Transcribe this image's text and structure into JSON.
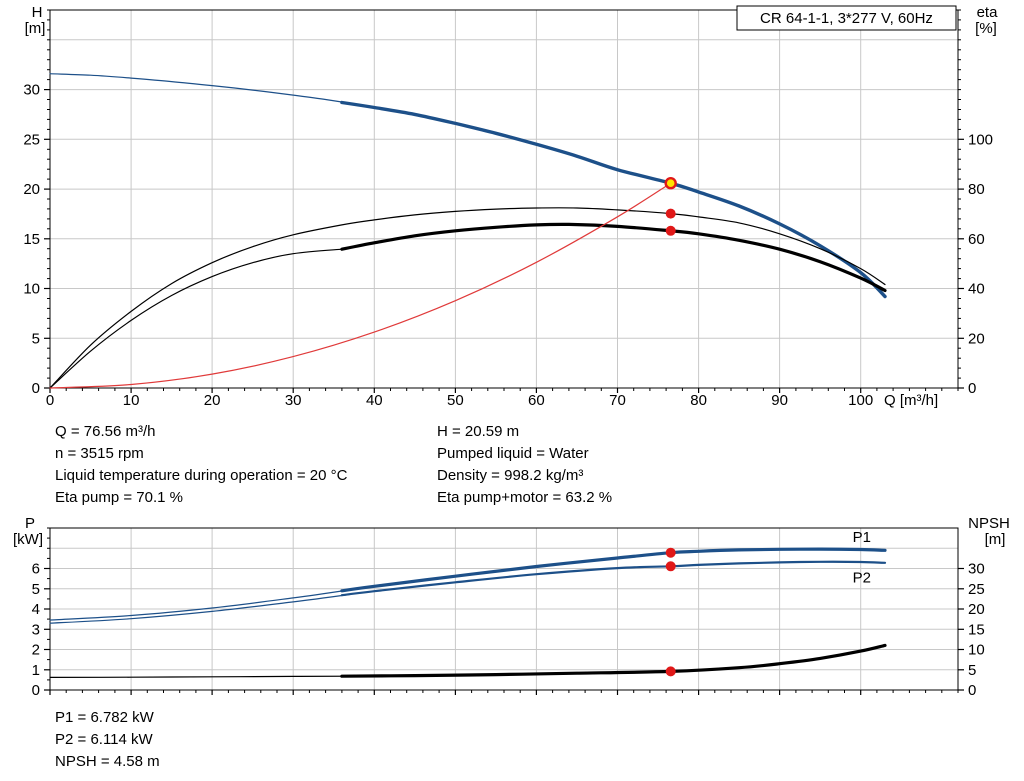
{
  "colors": {
    "curve_blue": "#1d5089",
    "curve_black": "#000000",
    "curve_red": "#e03a3a",
    "marker_red": "#e01818",
    "marker_yellow_fill": "#ffe300",
    "grid": "#c8c8c8",
    "frame": "#000000",
    "label_blue": "#1d5089"
  },
  "operating_data": {
    "left": [
      "Q = 76.56 m³/h",
      "n = 3515 rpm",
      "Liquid temperature during operation = 20 °C",
      "Eta pump = 70.1 %"
    ],
    "right": [
      "H = 20.59 m",
      "Pumped liquid = Water",
      "Density = 998.2 kg/m³",
      "Eta pump+motor = 63.2 %"
    ]
  },
  "power_data": [
    "P1 = 6.782 kW",
    "P2 = 6.114 kW",
    "NPSH = 4.58 m"
  ],
  "chart_data": [
    {
      "type": "line",
      "name": "hq-eta-chart",
      "title": "CR 64-1-1, 3*277 V, 60Hz",
      "x_axis": {
        "label": "Q [m³/h]",
        "min": 0,
        "max": 112,
        "ticks": [
          0,
          10,
          20,
          30,
          40,
          50,
          60,
          70,
          80,
          90,
          100
        ],
        "grid": [
          10,
          20,
          30,
          40,
          50,
          60,
          70,
          80,
          90,
          100
        ],
        "minor_step": 2
      },
      "y_left": {
        "label": "H",
        "unit": "[m]",
        "min": 0,
        "max": 38,
        "ticks": [
          0,
          5,
          10,
          15,
          20,
          25,
          30
        ],
        "grid": [
          5,
          10,
          15,
          20,
          25,
          30,
          35
        ],
        "minor_step": 1
      },
      "y_right": {
        "label": "eta",
        "unit": "[%]",
        "min": 0,
        "max": 152,
        "ticks": [
          0,
          20,
          40,
          60,
          80,
          100
        ],
        "minor_step": 4
      },
      "legend_position": "none",
      "series": [
        {
          "name": "hq-curve-low-flow",
          "color": "curve_blue",
          "width": 1.2,
          "points": [
            [
              0,
              31.6
            ],
            [
              5,
              31.45
            ],
            [
              10,
              31.15
            ],
            [
              15,
              30.8
            ],
            [
              20,
              30.4
            ],
            [
              25,
              29.95
            ],
            [
              30,
              29.45
            ],
            [
              34,
              29.0
            ],
            [
              38,
              28.5
            ]
          ]
        },
        {
          "name": "hq-curve",
          "color": "curve_blue",
          "width": 3.4,
          "points": [
            [
              36,
              28.7
            ],
            [
              40,
              28.2
            ],
            [
              45,
              27.5
            ],
            [
              50,
              26.6
            ],
            [
              55,
              25.6
            ],
            [
              60,
              24.5
            ],
            [
              65,
              23.3
            ],
            [
              70,
              21.95
            ],
            [
              76.56,
              20.59
            ],
            [
              80,
              19.7
            ],
            [
              85,
              18.3
            ],
            [
              90,
              16.5
            ],
            [
              95,
              14.3
            ],
            [
              100,
              11.6
            ],
            [
              103,
              9.2
            ]
          ]
        },
        {
          "name": "eta-pump-curve",
          "color": "curve_black",
          "width": 1.2,
          "points": [
            [
              0,
              0
            ],
            [
              5,
              4.3
            ],
            [
              10,
              7.7
            ],
            [
              15,
              10.5
            ],
            [
              20,
              12.6
            ],
            [
              25,
              14.2
            ],
            [
              30,
              15.4
            ],
            [
              36,
              16.4
            ],
            [
              40,
              16.9
            ],
            [
              45,
              17.4
            ],
            [
              50,
              17.75
            ],
            [
              55,
              17.98
            ],
            [
              60,
              18.1
            ],
            [
              65,
              18.1
            ],
            [
              70,
              17.9
            ],
            [
              76.56,
              17.53
            ],
            [
              80,
              17.2
            ],
            [
              85,
              16.6
            ],
            [
              90,
              15.5
            ],
            [
              95,
              14.0
            ],
            [
              100,
              12.0
            ],
            [
              103,
              10.4
            ]
          ]
        },
        {
          "name": "eta-pump-motor-curve-low-flow",
          "color": "curve_black",
          "width": 1.2,
          "points": [
            [
              0,
              0
            ],
            [
              5,
              3.7
            ],
            [
              10,
              6.8
            ],
            [
              15,
              9.3
            ],
            [
              20,
              11.2
            ],
            [
              25,
              12.6
            ],
            [
              30,
              13.5
            ],
            [
              36,
              13.95
            ]
          ]
        },
        {
          "name": "eta-pump-motor-curve",
          "color": "curve_black",
          "width": 3.2,
          "points": [
            [
              36,
              13.95
            ],
            [
              40,
              14.6
            ],
            [
              45,
              15.3
            ],
            [
              50,
              15.8
            ],
            [
              55,
              16.15
            ],
            [
              60,
              16.4
            ],
            [
              64,
              16.45
            ],
            [
              70,
              16.25
            ],
            [
              76.56,
              15.8
            ],
            [
              80,
              15.5
            ],
            [
              85,
              14.85
            ],
            [
              90,
              13.95
            ],
            [
              95,
              12.7
            ],
            [
              100,
              11.05
            ],
            [
              103,
              9.8
            ]
          ]
        },
        {
          "name": "system-curve",
          "color": "curve_red",
          "width": 1.2,
          "points": [
            [
              0,
              0
            ],
            [
              10,
              0.35
            ],
            [
              20,
              1.4
            ],
            [
              30,
              3.16
            ],
            [
              40,
              5.62
            ],
            [
              50,
              8.78
            ],
            [
              60,
              12.64
            ],
            [
              70,
              17.21
            ],
            [
              76.56,
              20.59
            ]
          ]
        }
      ],
      "markers": [
        {
          "name": "eta-pump-point",
          "x": 76.56,
          "y": 17.53,
          "r": 5,
          "fill": "marker_red"
        },
        {
          "name": "eta-pump-motor-point",
          "x": 76.56,
          "y": 15.8,
          "r": 5,
          "fill": "marker_red"
        },
        {
          "name": "duty-point",
          "x": 76.56,
          "y": 20.59,
          "r": 5,
          "fill": "marker_yellow_fill",
          "stroke": "marker_red",
          "stroke_width": 2.4
        }
      ],
      "labels": []
    },
    {
      "type": "line",
      "name": "power-npsh-chart",
      "title": "",
      "x_axis": {
        "label": "",
        "min": 0,
        "max": 112,
        "ticks": [
          0,
          10,
          20,
          30,
          40,
          50,
          60,
          70,
          80,
          90,
          100
        ],
        "grid": [
          10,
          20,
          30,
          40,
          50,
          60,
          70,
          80,
          90,
          100
        ],
        "minor_step": 2
      },
      "y_left": {
        "label": "P",
        "unit": "[kW]",
        "min": 0,
        "max": 8,
        "ticks": [
          0,
          1,
          2,
          3,
          4,
          5,
          6
        ],
        "grid": [
          1,
          2,
          3,
          4,
          5,
          6,
          7
        ],
        "minor_step": 0.5
      },
      "y_right": {
        "label": "NPSH",
        "unit": "[m]",
        "min": 0,
        "max": 40,
        "ticks": [
          0,
          5,
          10,
          15,
          20,
          25,
          30
        ]
      },
      "legend_position": "none",
      "series": [
        {
          "name": "p1-curve-low-flow",
          "color": "curve_blue",
          "width": 1.2,
          "points": [
            [
              0,
              3.45
            ],
            [
              10,
              3.68
            ],
            [
              20,
              4.05
            ],
            [
              30,
              4.55
            ],
            [
              37,
              4.95
            ]
          ]
        },
        {
          "name": "p1-curve",
          "color": "curve_blue",
          "width": 3.2,
          "points": [
            [
              36,
              4.9
            ],
            [
              40,
              5.12
            ],
            [
              50,
              5.62
            ],
            [
              60,
              6.1
            ],
            [
              70,
              6.52
            ],
            [
              76.56,
              6.78
            ],
            [
              80,
              6.85
            ],
            [
              85,
              6.92
            ],
            [
              90,
              6.95
            ],
            [
              95,
              6.96
            ],
            [
              100,
              6.94
            ],
            [
              103,
              6.9
            ]
          ]
        },
        {
          "name": "p2-curve-low-flow",
          "color": "curve_blue",
          "width": 1.2,
          "points": [
            [
              0,
              3.3
            ],
            [
              10,
              3.52
            ],
            [
              20,
              3.88
            ],
            [
              30,
              4.35
            ],
            [
              37,
              4.72
            ]
          ]
        },
        {
          "name": "p2-curve",
          "color": "curve_blue",
          "width": 2.2,
          "points": [
            [
              36,
              4.68
            ],
            [
              40,
              4.88
            ],
            [
              50,
              5.32
            ],
            [
              60,
              5.72
            ],
            [
              70,
              6.02
            ],
            [
              76.56,
              6.11
            ],
            [
              80,
              6.18
            ],
            [
              85,
              6.25
            ],
            [
              90,
              6.3
            ],
            [
              95,
              6.33
            ],
            [
              100,
              6.32
            ],
            [
              103,
              6.28
            ]
          ]
        },
        {
          "name": "npsh-curve-low-flow",
          "color": "curve_black",
          "width": 1.2,
          "points": [
            [
              0,
              0.62
            ],
            [
              10,
              0.63
            ],
            [
              20,
              0.65
            ],
            [
              30,
              0.67
            ],
            [
              37,
              0.68
            ]
          ]
        },
        {
          "name": "npsh-curve",
          "color": "curve_black",
          "width": 3.2,
          "points": [
            [
              36,
              0.68
            ],
            [
              45,
              0.71
            ],
            [
              55,
              0.76
            ],
            [
              65,
              0.83
            ],
            [
              76.56,
              0.92
            ],
            [
              85,
              1.1
            ],
            [
              90,
              1.3
            ],
            [
              95,
              1.56
            ],
            [
              100,
              1.92
            ],
            [
              103,
              2.2
            ]
          ]
        }
      ],
      "markers": [
        {
          "name": "p1-point",
          "x": 76.56,
          "y": 6.78,
          "r": 5,
          "fill": "marker_red"
        },
        {
          "name": "p2-point",
          "x": 76.56,
          "y": 6.11,
          "r": 5,
          "fill": "marker_red"
        },
        {
          "name": "npsh-point",
          "x": 76.56,
          "y": 0.92,
          "r": 5,
          "fill": "marker_red"
        }
      ],
      "labels": [
        {
          "name": "p1-curve-label",
          "text": "P1",
          "x": 99,
          "y": 7.3,
          "color": "label_blue"
        },
        {
          "name": "p2-curve-label",
          "text": "P2",
          "x": 99,
          "y": 5.3,
          "color": "label_blue"
        }
      ]
    }
  ]
}
